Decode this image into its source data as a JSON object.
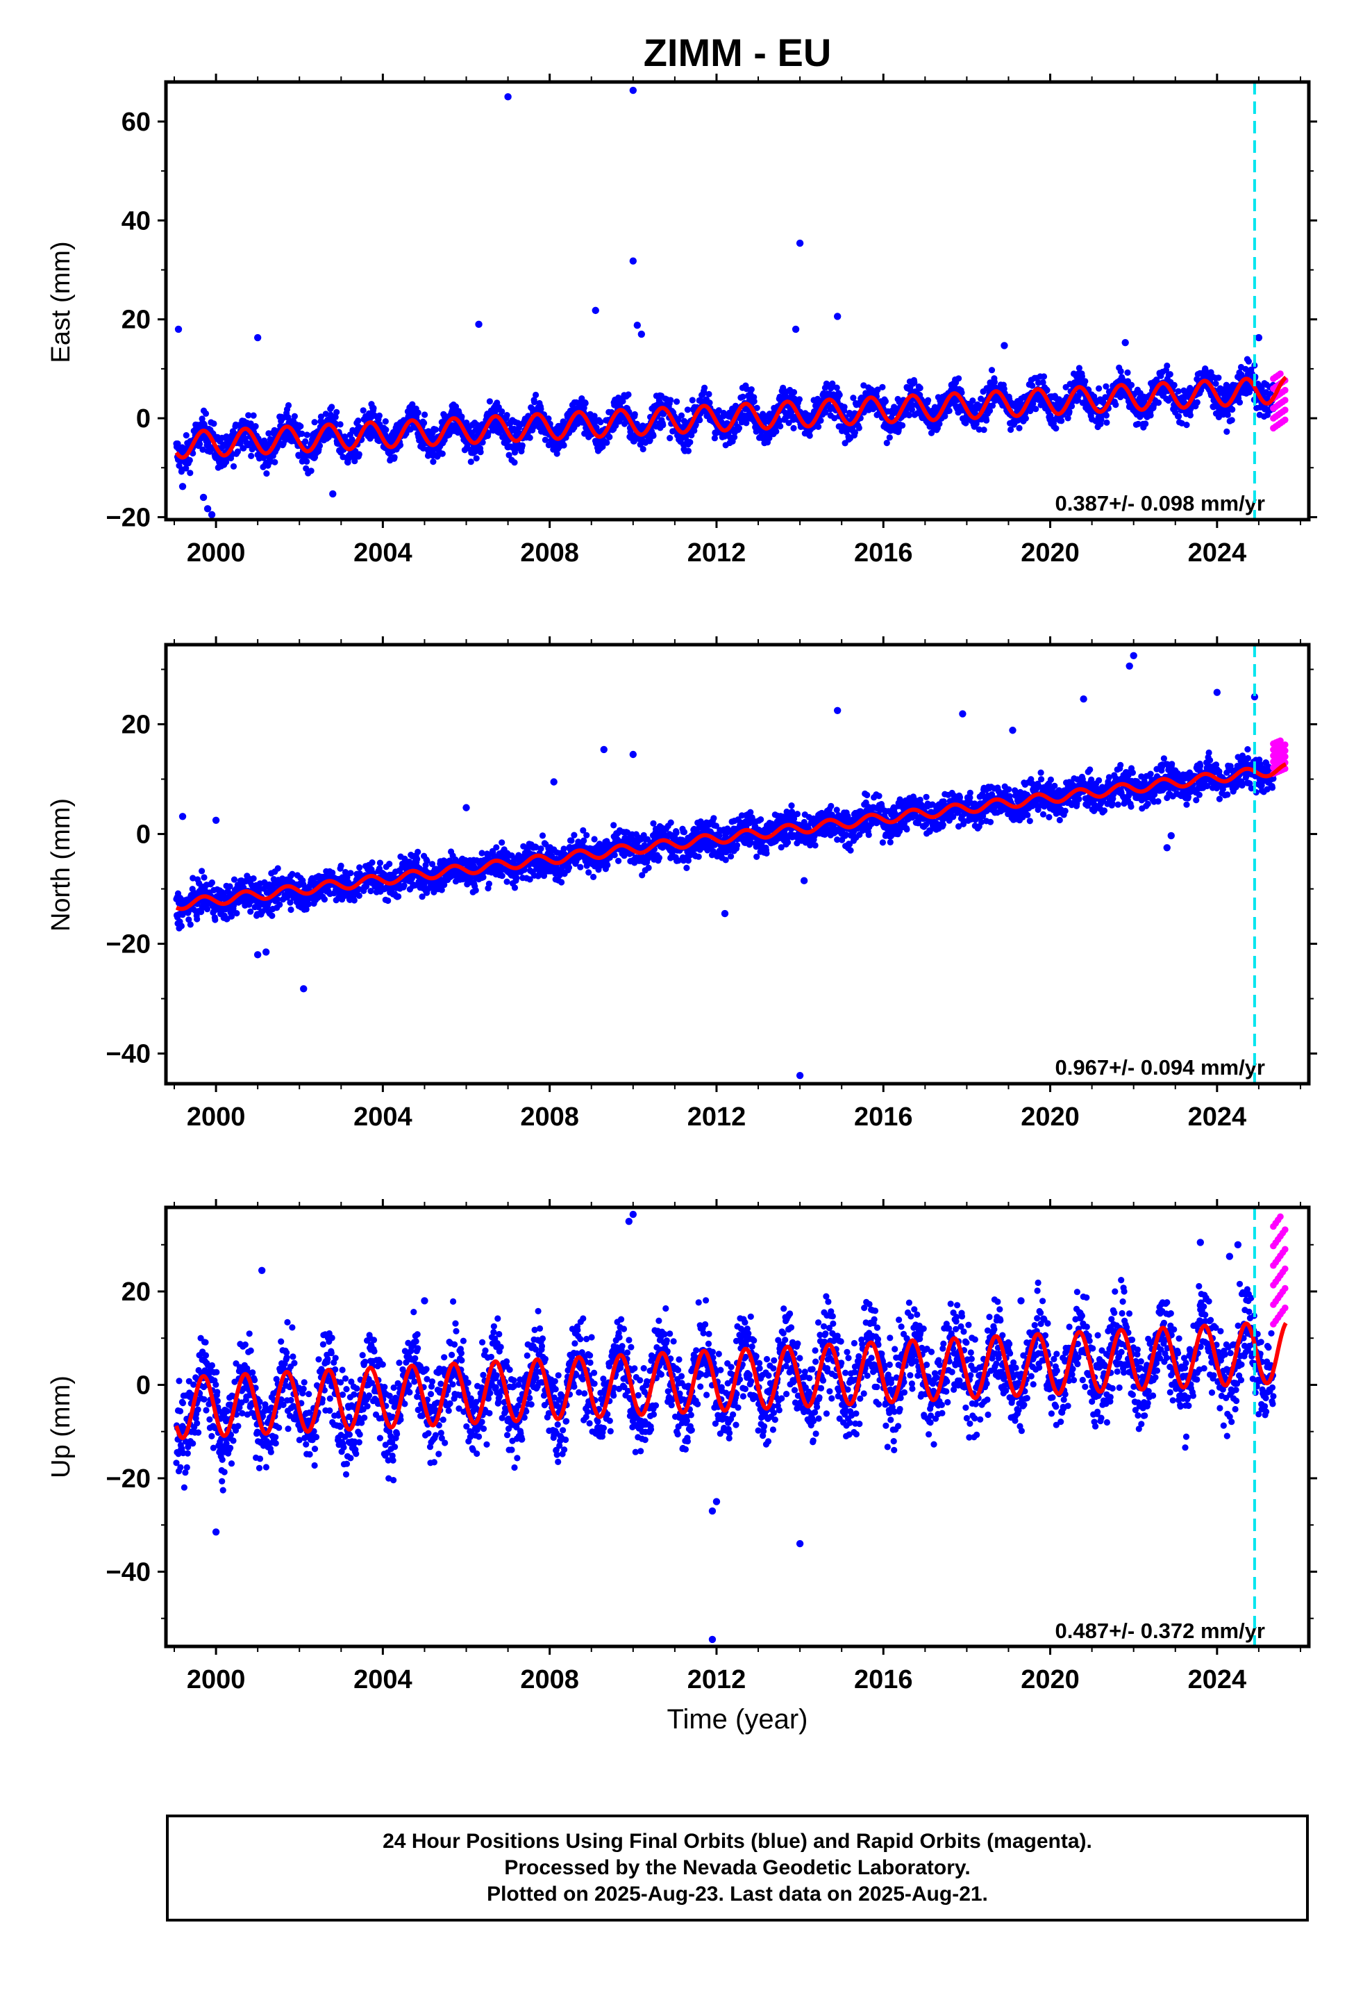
{
  "chart_data": {
    "title": "ZIMM - EU",
    "xlabel": "Time (year)",
    "xlim": [
      1998.8,
      2026.2
    ],
    "xticks": [
      2000,
      2004,
      2008,
      2012,
      2016,
      2020,
      2024
    ],
    "vline_x": 2024.9,
    "vline_color": "#00e5ee",
    "final_color": "#0000ff",
    "rapid_color": "#ff00ff",
    "model_color": "#ff0000",
    "panels": [
      {
        "type": "scatter",
        "ylabel": "East (mm)",
        "ylim": [
          -20.5,
          68
        ],
        "yticks": [
          60,
          40,
          20,
          0,
          -20
        ],
        "rate_text": "0.387+/- 0.098 mm/yr",
        "model": {
          "y2000": -5.0,
          "slope": 0.42,
          "amplitude": 2.6,
          "phase": 0.45
        },
        "outliers": [
          [
            2007.0,
            65.0
          ],
          [
            2010.0,
            66.3
          ],
          [
            2014.0,
            35.4
          ],
          [
            2010.0,
            31.8
          ],
          [
            2009.1,
            21.8
          ],
          [
            2010.1,
            18.8
          ],
          [
            2010.2,
            17.0
          ],
          [
            2006.3,
            19.0
          ],
          [
            1999.1,
            18.0
          ],
          [
            2001.0,
            16.3
          ],
          [
            2014.9,
            20.6
          ],
          [
            2025.0,
            16.3
          ],
          [
            2018.9,
            14.7
          ],
          [
            2021.8,
            15.3
          ],
          [
            1999.2,
            -13.8
          ],
          [
            1999.7,
            -16.0
          ],
          [
            1999.8,
            -18.3
          ],
          [
            1999.9,
            -19.5
          ],
          [
            2002.8,
            -15.3
          ],
          [
            2013.9,
            18.0
          ]
        ],
        "rapid": {
          "x_start": 2025.35,
          "x_end": 2025.63,
          "y_min": -2,
          "y_max": 9
        },
        "noise": 1.8,
        "n_points": 3200
      },
      {
        "type": "scatter",
        "ylabel": "North (mm)",
        "ylim": [
          -45.5,
          34.5
        ],
        "yticks": [
          20,
          0,
          -20,
          -40
        ],
        "rate_text": "0.967+/- 0.094 mm/yr",
        "model": {
          "y2000": -12.0,
          "slope": 0.93,
          "amplitude": 0.9,
          "phase": 0.45
        },
        "outliers": [
          [
            2022.0,
            32.5
          ],
          [
            2021.9,
            30.6
          ],
          [
            2020.8,
            24.6
          ],
          [
            2024.0,
            25.8
          ],
          [
            2024.9,
            25.0
          ],
          [
            2014.9,
            22.5
          ],
          [
            2017.9,
            21.9
          ],
          [
            2009.3,
            15.4
          ],
          [
            2010.0,
            14.5
          ],
          [
            2019.1,
            18.9
          ],
          [
            1999.2,
            3.2
          ],
          [
            2000.0,
            2.5
          ],
          [
            2001.0,
            -22.0
          ],
          [
            2001.2,
            -21.5
          ],
          [
            2002.1,
            -28.2
          ],
          [
            2012.2,
            -14.5
          ],
          [
            2014.0,
            -44.0
          ],
          [
            2014.1,
            -8.5
          ],
          [
            2022.9,
            -0.3
          ],
          [
            2022.8,
            -2.5
          ],
          [
            2008.1,
            9.5
          ],
          [
            2006.0,
            4.8
          ]
        ],
        "rapid": {
          "x_start": 2025.35,
          "x_end": 2025.63,
          "y_min": 11,
          "y_max": 17
        },
        "noise": 1.6,
        "n_points": 3200
      },
      {
        "type": "scatter",
        "ylabel": "Up (mm)",
        "ylim": [
          -56,
          38
        ],
        "yticks": [
          20,
          0,
          -20,
          -40
        ],
        "rate_text": "0.487+/- 0.372 mm/yr",
        "model": {
          "y2000": -4.5,
          "slope": 0.45,
          "amplitude": 6.5,
          "phase": 0.45
        },
        "outliers": [
          [
            2010.0,
            36.5
          ],
          [
            2009.9,
            35.0
          ],
          [
            2001.1,
            24.5
          ],
          [
            2000.0,
            -31.5
          ],
          [
            2011.9,
            -54.5
          ],
          [
            2014.0,
            -34.0
          ],
          [
            2024.5,
            30.0
          ],
          [
            2023.6,
            30.5
          ],
          [
            2024.3,
            27.5
          ],
          [
            2005.0,
            18.0
          ],
          [
            2011.9,
            -27.0
          ],
          [
            2012.0,
            -25.0
          ],
          [
            2019.3,
            18.0
          ]
        ],
        "rapid": {
          "x_start": 2025.35,
          "x_end": 2025.63,
          "y_min": 13,
          "y_max": 36
        },
        "noise": 4.8,
        "n_points": 3200
      }
    ]
  },
  "caption": {
    "line1": "24 Hour Positions Using Final Orbits (blue) and Rapid Orbits (magenta).",
    "line2": "Processed by the Nevada Geodetic Laboratory.",
    "line3": "Plotted on 2025-Aug-23. Last data on 2025-Aug-21."
  }
}
